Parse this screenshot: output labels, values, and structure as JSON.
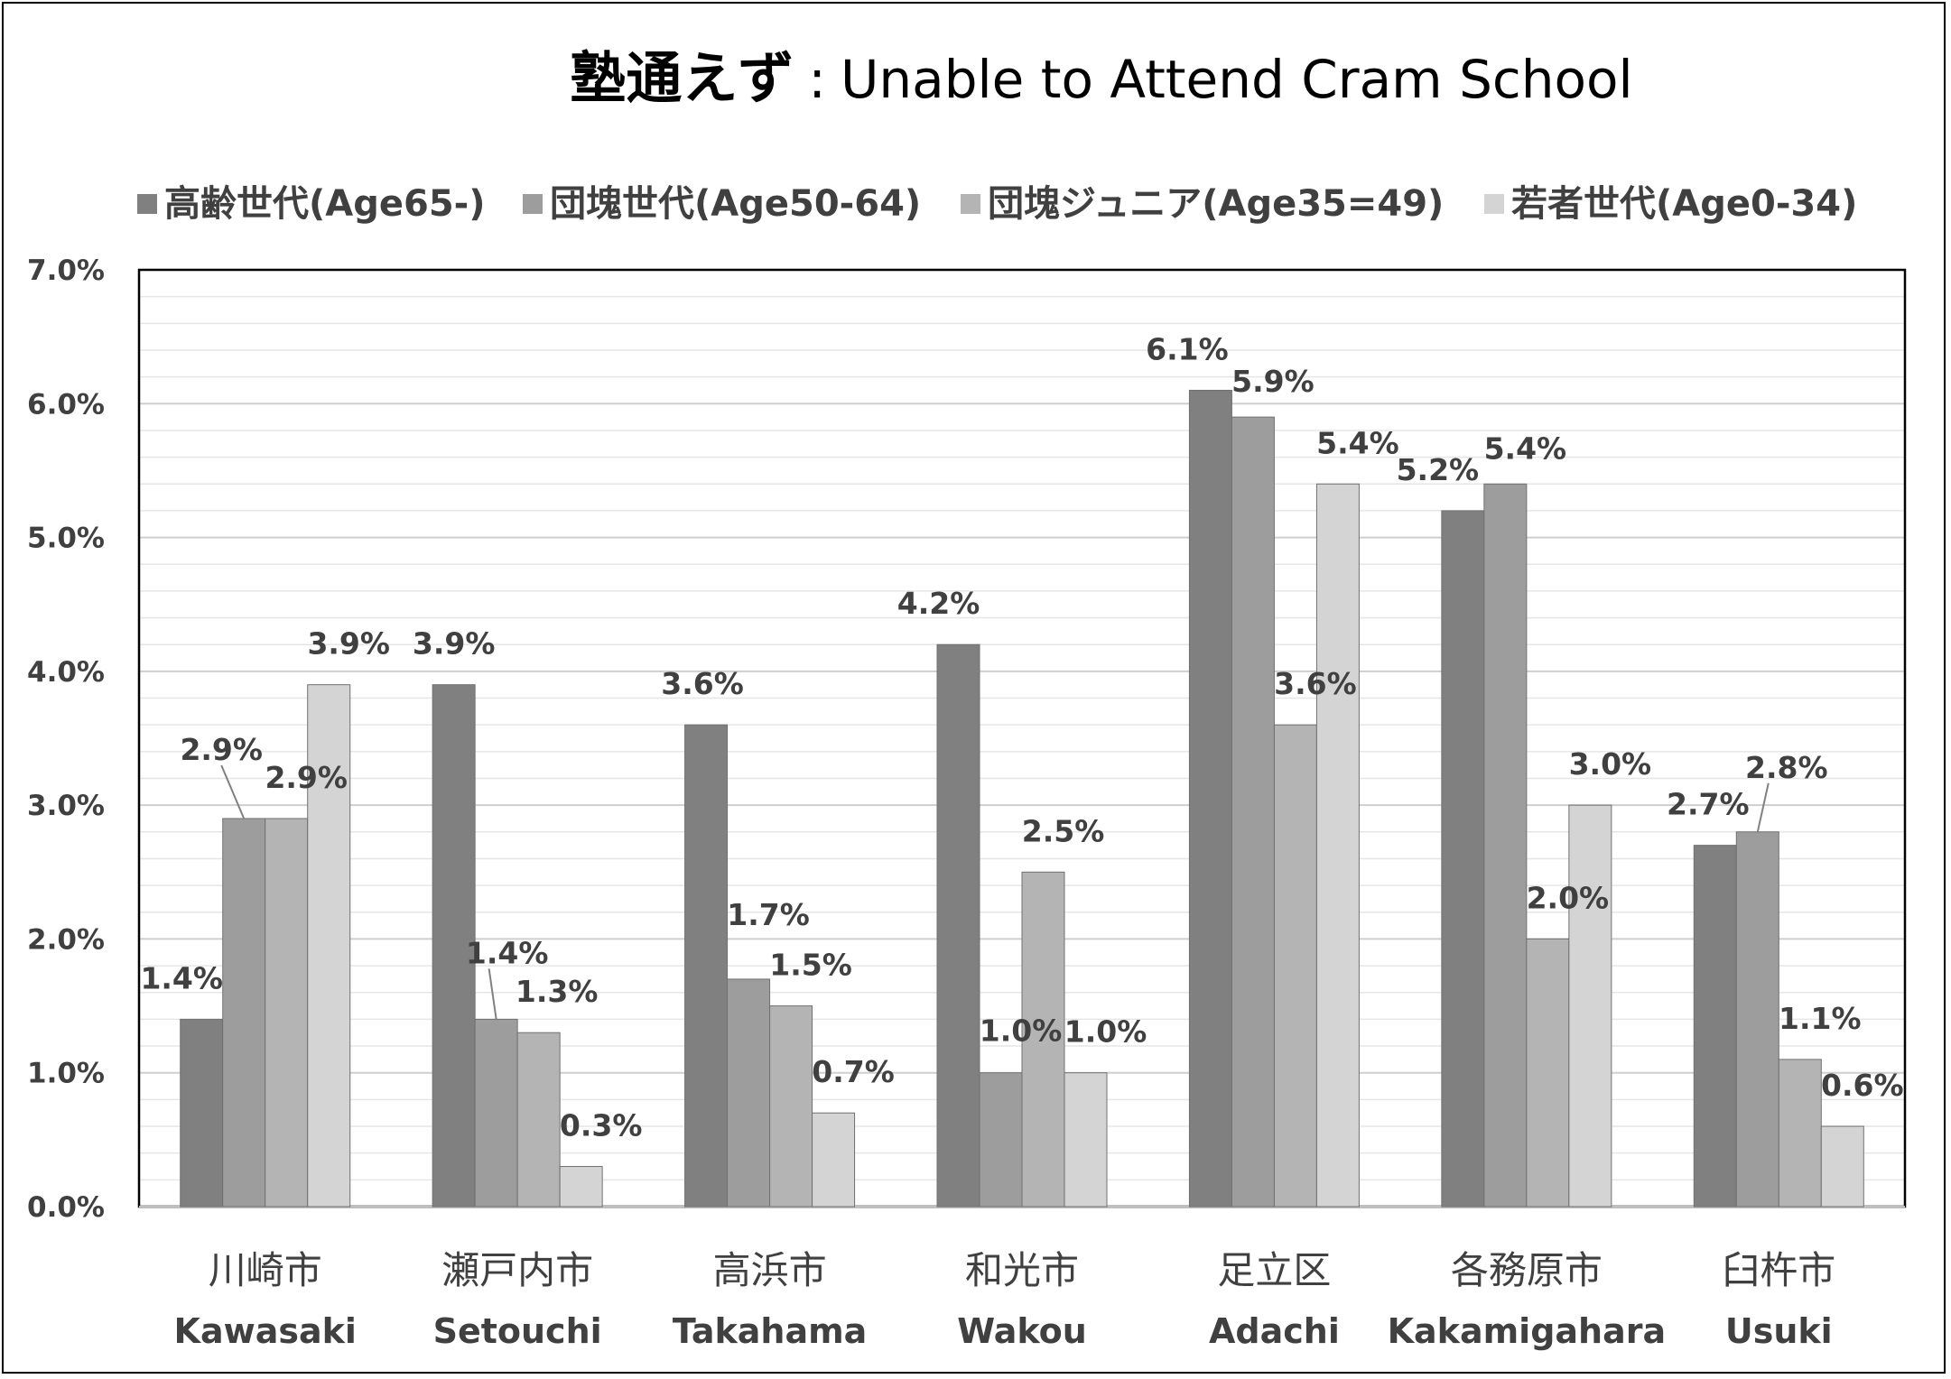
{
  "title": {
    "jp": "塾通えず",
    "sep": ":",
    "en": "Unable to Attend  Cram School"
  },
  "chart_data": {
    "type": "bar",
    "categories": [
      {
        "jp": "川崎市",
        "en": "Kawasaki"
      },
      {
        "jp": "瀬戸内市",
        "en": "Setouchi"
      },
      {
        "jp": "高浜市",
        "en": "Takahama"
      },
      {
        "jp": "和光市",
        "en": "Wakou"
      },
      {
        "jp": "足立区",
        "en": "Adachi"
      },
      {
        "jp": "各務原市",
        "en": "Kakamigahara"
      },
      {
        "jp": "臼杵市",
        "en": "Usuki"
      }
    ],
    "series": [
      {
        "name": "高齢世代(Age65-)",
        "color": "#808080",
        "values": [
          1.4,
          3.9,
          3.6,
          4.2,
          6.1,
          5.2,
          2.7
        ],
        "labels": [
          "1.4%",
          "3.9%",
          "3.6%",
          "4.2%",
          "6.1%",
          "5.2%",
          "2.7%"
        ]
      },
      {
        "name": "団塊世代(Age50-64)",
        "color": "#9d9d9d",
        "values": [
          2.9,
          1.4,
          1.7,
          1.0,
          5.9,
          5.4,
          2.8
        ],
        "labels": [
          "2.9%",
          "1.4%",
          "1.7%",
          "1.0%",
          "5.9%",
          "5.4%",
          "2.8%"
        ]
      },
      {
        "name": "団塊ジュニア(Age35=49)",
        "color": "#b4b4b4",
        "values": [
          2.9,
          1.3,
          1.5,
          2.5,
          3.6,
          2.0,
          1.1
        ],
        "labels": [
          "2.9%",
          "1.3%",
          "1.5%",
          "2.5%",
          "3.6%",
          "2.0%",
          "1.1%"
        ]
      },
      {
        "name": "若者世代(Age0-34)",
        "color": "#d4d4d4",
        "values": [
          3.9,
          0.3,
          0.7,
          1.0,
          5.4,
          3.0,
          0.6
        ],
        "labels": [
          "3.9%",
          "0.3%",
          "0.7%",
          "1.0%",
          "5.4%",
          "3.0%",
          "0.6%"
        ]
      }
    ],
    "ylim": [
      0,
      7
    ],
    "yticks": [
      "0.0%",
      "1.0%",
      "2.0%",
      "3.0%",
      "4.0%",
      "5.0%",
      "6.0%",
      "7.0%"
    ],
    "legend_position": "top",
    "grid": true,
    "xlabel": "",
    "ylabel": ""
  }
}
